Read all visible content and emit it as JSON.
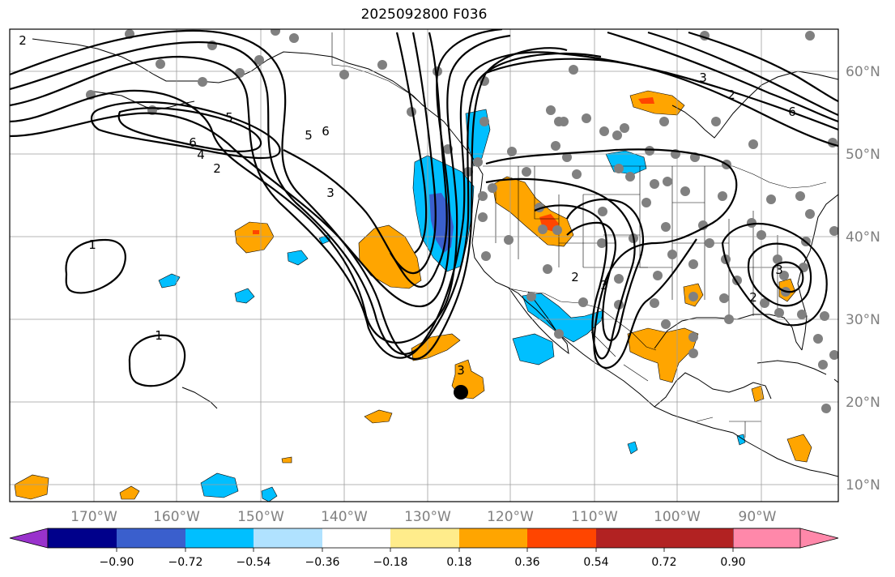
{
  "title": "2025092800 F036",
  "map": {
    "lon_range": [
      -180,
      -79
    ],
    "lat_range": [
      8,
      65
    ],
    "lat_labels": [
      "60°N",
      "50°N",
      "40°N",
      "30°N",
      "20°N",
      "10°N"
    ],
    "lon_labels": [
      "170°W",
      "160°W",
      "150°W",
      "140°W",
      "130°W",
      "120°W",
      "110°W",
      "100°W",
      "90°W"
    ],
    "gridlines": true
  },
  "colorbar": {
    "ticks": [
      "−0.90",
      "−0.72",
      "−0.54",
      "−0.36",
      "−0.18",
      "0.18",
      "0.36",
      "0.54",
      "0.72",
      "0.90"
    ],
    "colors": [
      "#9932cc",
      "#00008b",
      "#3a5fcd",
      "#00bfff",
      "#b0e2ff",
      "#ffffff",
      "#ffec8b",
      "#ffa500",
      "#ff4500",
      "#b22222",
      "#ff88aa"
    ]
  },
  "contour_labels": [
    "2",
    "6",
    "5",
    "4",
    "2",
    "6",
    "5",
    "3",
    "1",
    "1",
    "3",
    "2",
    "2",
    "3",
    "3",
    "6",
    "2",
    "3"
  ]
}
